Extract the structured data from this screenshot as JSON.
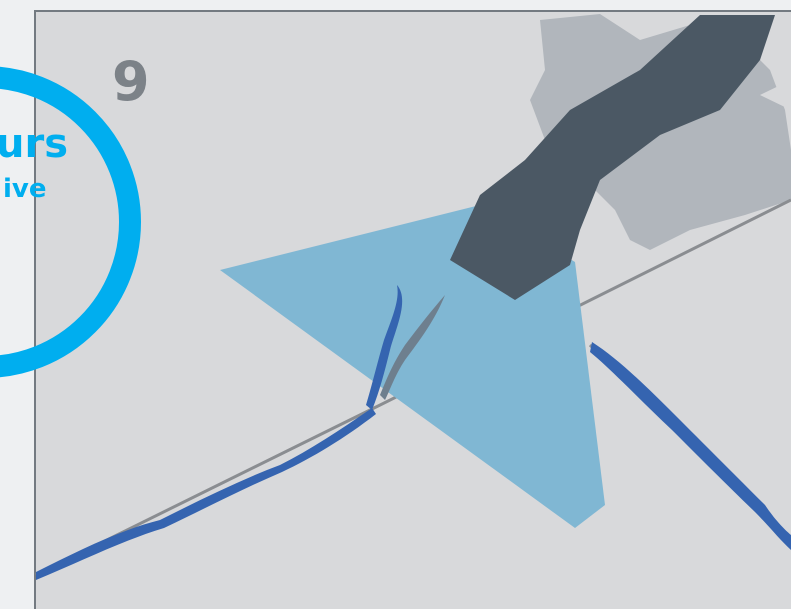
{
  "step": {
    "number": "9",
    "caption_line_1": "urs",
    "caption_line_2": "ive"
  }
}
